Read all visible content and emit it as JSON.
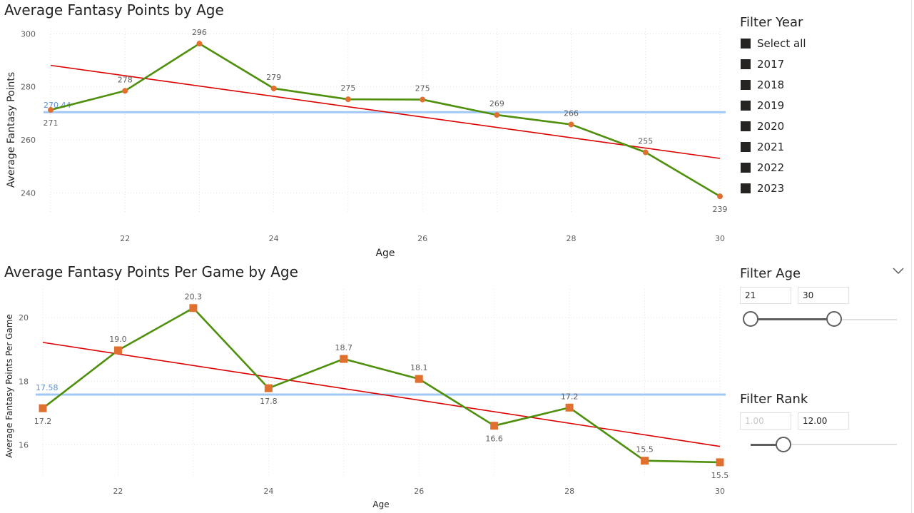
{
  "chart_data": [
    {
      "type": "line",
      "title": "Average Fantasy Points by Age",
      "xlabel": "Age",
      "ylabel": "Average Fantasy Points",
      "x": [
        21,
        22,
        23,
        24,
        25,
        26,
        27,
        28,
        29,
        30
      ],
      "xticks": [
        "22",
        "24",
        "26",
        "28",
        "30"
      ],
      "yticks": [
        "240",
        "260",
        "280",
        "300"
      ],
      "ylim": [
        232,
        302
      ],
      "xlim": [
        21,
        30
      ],
      "grid": true,
      "series": [
        {
          "values": [
            271.3,
            278.5,
            296.3,
            279.4,
            275.3,
            275.2,
            269.4,
            265.8,
            255.3,
            238.7
          ],
          "labels": [
            "271",
            "278",
            "296",
            "279",
            "275",
            "275",
            "269",
            "266",
            "255",
            "239"
          ],
          "color": "#4e8f0c",
          "marker": "circle",
          "marker_color": "#e07030"
        }
      ],
      "trend_line": {
        "start": 288.1,
        "end": 253.0,
        "color": "#dd0000"
      },
      "average_line": {
        "value": 270.44,
        "label": "270.44",
        "color": "#9fc8f5"
      }
    },
    {
      "type": "line",
      "title": "Average Fantasy Points Per Game by Age",
      "xlabel": "Age",
      "ylabel": "Average Fantasy Points Per Game",
      "x": [
        21,
        22,
        23,
        24,
        25,
        26,
        27,
        28,
        29,
        30
      ],
      "xticks": [
        "22",
        "24",
        "26",
        "28",
        "30"
      ],
      "yticks": [
        "16",
        "18",
        "20"
      ],
      "ylim": [
        15.0,
        20.9
      ],
      "xlim": [
        21,
        30
      ],
      "grid": true,
      "series": [
        {
          "values": [
            17.15,
            18.97,
            20.3,
            17.78,
            18.7,
            18.07,
            16.6,
            17.17,
            15.5,
            15.45
          ],
          "labels": [
            "17.2",
            "19.0",
            "20.3",
            "17.8",
            "18.7",
            "18.1",
            "16.6",
            "17.2",
            "15.5",
            "15.5"
          ],
          "color": "#4e8f0c",
          "marker": "square",
          "marker_color": "#e07030"
        }
      ],
      "trend_line": {
        "start": 19.22,
        "end": 15.95,
        "color": "#dd0000"
      },
      "average_line": {
        "value": 17.58,
        "label": "17.58",
        "color": "#9fc8f5"
      }
    }
  ],
  "filters": {
    "year": {
      "title": "Filter Year",
      "items": [
        "Select all",
        "2017",
        "2018",
        "2019",
        "2020",
        "2021",
        "2022",
        "2023"
      ]
    },
    "age": {
      "title": "Filter Age",
      "min_value": "21",
      "max_value": "30",
      "min_fraction": 0.0,
      "max_fraction": 1.0
    },
    "rank": {
      "title": "Filter Rank",
      "min_value": "1.00",
      "max_value": "12.00"
    }
  },
  "icons": {
    "age_dropdown": "chevron-down-icon"
  }
}
